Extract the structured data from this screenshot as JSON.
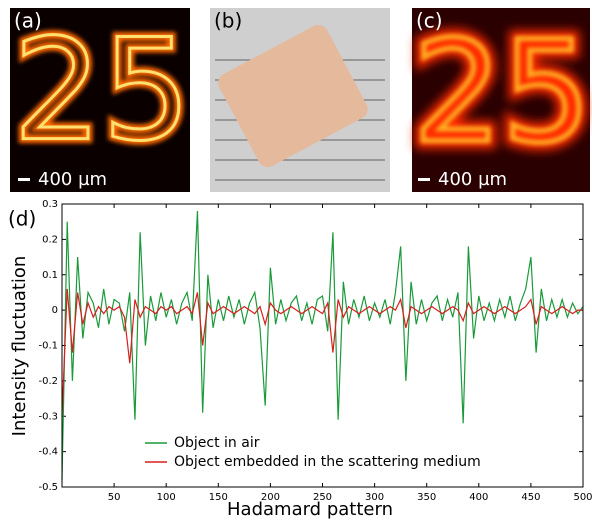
{
  "images": [
    {
      "label": "(a)",
      "content": "25",
      "scale_bar": "400 µm"
    },
    {
      "label": "(b)"
    },
    {
      "label": "(c)",
      "content": "25",
      "scale_bar": "400 µm"
    }
  ],
  "chart_data": {
    "type": "line",
    "label": "(d)",
    "x_label": "Hadamard pattern",
    "y_label": "Intensity fluctuation",
    "x": [
      0,
      5,
      10,
      15,
      20,
      25,
      30,
      35,
      40,
      45,
      50,
      55,
      60,
      65,
      70,
      75,
      80,
      85,
      90,
      95,
      100,
      105,
      110,
      115,
      120,
      125,
      130,
      135,
      140,
      145,
      150,
      155,
      160,
      165,
      170,
      175,
      180,
      185,
      190,
      195,
      200,
      205,
      210,
      215,
      220,
      225,
      230,
      235,
      240,
      245,
      250,
      255,
      260,
      265,
      270,
      275,
      280,
      285,
      290,
      295,
      300,
      305,
      310,
      315,
      320,
      325,
      330,
      335,
      340,
      345,
      350,
      355,
      360,
      365,
      370,
      375,
      380,
      385,
      390,
      395,
      400,
      405,
      410,
      415,
      420,
      425,
      430,
      435,
      440,
      445,
      450,
      455,
      460,
      465,
      470,
      475,
      480,
      485,
      490,
      495,
      500
    ],
    "series": [
      {
        "name": "Object in air",
        "color": "#1a9a3a",
        "values": [
          -0.48,
          0.25,
          -0.2,
          0.15,
          -0.08,
          0.05,
          0.02,
          -0.05,
          0.06,
          -0.04,
          0.03,
          0.02,
          -0.06,
          0.05,
          -0.31,
          0.22,
          -0.1,
          0.04,
          -0.03,
          0.05,
          -0.02,
          0.03,
          -0.04,
          0.02,
          0.05,
          -0.03,
          0.28,
          -0.29,
          0.1,
          -0.05,
          0.03,
          -0.03,
          0.04,
          -0.02,
          0.03,
          -0.04,
          0.02,
          0.05,
          -0.05,
          -0.27,
          0.12,
          -0.04,
          0.03,
          -0.03,
          0.02,
          0.04,
          -0.03,
          0.02,
          -0.04,
          0.03,
          0.04,
          -0.06,
          0.22,
          -0.31,
          0.08,
          -0.04,
          0.03,
          -0.02,
          0.04,
          -0.03,
          0.02,
          -0.02,
          0.03,
          -0.04,
          0.05,
          0.18,
          -0.2,
          0.08,
          -0.04,
          0.03,
          -0.03,
          0.02,
          0.04,
          -0.03,
          0.03,
          -0.02,
          0.05,
          -0.32,
          0.18,
          -0.08,
          0.04,
          -0.03,
          0.02,
          -0.03,
          0.03,
          -0.02,
          0.04,
          -0.03,
          0.02,
          0.06,
          0.15,
          -0.12,
          0.06,
          -0.03,
          0.03,
          -0.02,
          0.03,
          -0.02,
          0.02,
          -0.01,
          0.01
        ]
      },
      {
        "name": "Object embedded in the scattering medium",
        "color": "#d81e1e",
        "values": [
          -0.3,
          0.06,
          -0.12,
          0.05,
          -0.04,
          0.02,
          -0.02,
          0.01,
          -0.01,
          0.01,
          0,
          0.01,
          -0.02,
          -0.15,
          0.03,
          -0.02,
          0.01,
          0,
          -0.01,
          0.01,
          0,
          0.01,
          -0.01,
          0,
          0.01,
          -0.01,
          0.05,
          -0.1,
          0.02,
          -0.01,
          0,
          0.01,
          0,
          -0.01,
          0,
          0.01,
          0,
          -0.01,
          0.01,
          -0.04,
          0.02,
          0,
          -0.01,
          0,
          0.01,
          0,
          -0.01,
          0,
          0.01,
          0,
          -0.01,
          0.02,
          -0.12,
          0.03,
          -0.02,
          0.01,
          0,
          -0.01,
          0,
          0.01,
          0,
          -0.01,
          0,
          0.01,
          0,
          0.03,
          -0.05,
          0.01,
          0,
          -0.01,
          0,
          0.01,
          0,
          -0.01,
          0,
          0.01,
          0,
          -0.03,
          0.02,
          -0.01,
          0,
          0.01,
          0,
          -0.01,
          0,
          0.01,
          0,
          -0.01,
          0,
          0.01,
          0.03,
          -0.04,
          0.01,
          0,
          -0.01,
          0,
          0.01,
          0,
          -0.01,
          0,
          0
        ]
      }
    ],
    "xlim": [
      0,
      500
    ],
    "xticks": [
      50,
      100,
      150,
      200,
      250,
      300,
      350,
      400,
      450,
      500
    ],
    "ylim": [
      -0.5,
      0.3
    ],
    "yticks": [
      -0.5,
      -0.4,
      -0.3,
      -0.2,
      -0.1,
      0,
      0.1,
      0.2,
      0.3
    ]
  }
}
